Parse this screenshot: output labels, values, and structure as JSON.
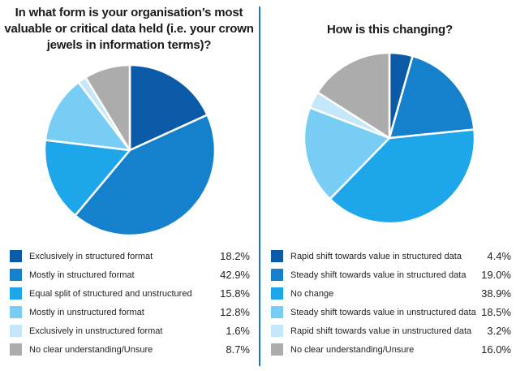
{
  "chart_data": [
    {
      "type": "pie",
      "title_lines": [
        "In what form is your organisation’s most",
        "valuable or critical data held (i.e. your crown",
        "jewels in information terms)?"
      ],
      "slices": [
        {
          "label": "Exclusively in structured format",
          "value": 18.2,
          "display": "18.2%",
          "color": "#0a5aa8"
        },
        {
          "label": "Mostly in structured format",
          "value": 42.9,
          "display": "42.9%",
          "color": "#1580cc"
        },
        {
          "label": "Equal split of structured and unstructured",
          "value": 15.8,
          "display": "15.8%",
          "color": "#1ea6ea"
        },
        {
          "label": "Mostly in unstructured format",
          "value": 12.8,
          "display": "12.8%",
          "color": "#77cdf3"
        },
        {
          "label": "Exclusively in unstructured format",
          "value": 1.6,
          "display": "1.6%",
          "color": "#c4e8fa"
        },
        {
          "label": "No clear understanding/Unsure",
          "value": 8.7,
          "display": "8.7%",
          "color": "#acacac"
        }
      ]
    },
    {
      "type": "pie",
      "title_lines": [
        "How is this changing?"
      ],
      "slices": [
        {
          "label": "Rapid shift towards value in structured data",
          "value": 4.4,
          "display": "4.4%",
          "color": "#0a5aa8"
        },
        {
          "label": "Steady shift towards value in structured data",
          "value": 19.0,
          "display": "19.0%",
          "color": "#1580cc"
        },
        {
          "label": "No change",
          "value": 38.9,
          "display": "38.9%",
          "color": "#1ea6ea"
        },
        {
          "label": "Steady shift towards value in unstructured data",
          "value": 18.5,
          "display": "18.5%",
          "color": "#77cdf3"
        },
        {
          "label": "Rapid shift towards value in unstructured data",
          "value": 3.2,
          "display": "3.2%",
          "color": "#c4e8fa"
        },
        {
          "label": "No clear understanding/Unsure",
          "value": 16.0,
          "display": "16.0%",
          "color": "#acacac"
        }
      ]
    }
  ]
}
